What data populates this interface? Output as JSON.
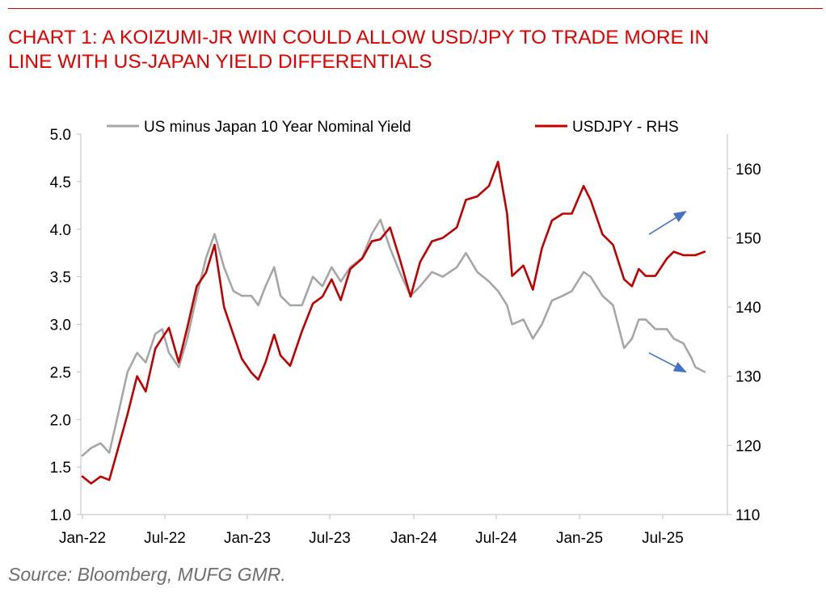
{
  "title": {
    "line1": "CHART 1: A KOIZUMI-JR WIN COULD ALLOW USD/JPY TO TRADE MORE IN",
    "line2": "LINE WITH US-JAPAN YIELD DIFFERENTIALS"
  },
  "source": "Source: Bloomberg, MUFG GMR.",
  "colors": {
    "title": "#e00000",
    "yield_series": "#a6a6a6",
    "usdjpy_series": "#c00000",
    "arrow": "#4472c4"
  },
  "chart_data": {
    "type": "line",
    "title": "CHART 1: A KOIZUMI-JR WIN COULD ALLOW USD/JPY TO TRADE MORE IN LINE WITH US-JAPAN YIELD DIFFERENTIALS",
    "legend_position": "top",
    "grid": false,
    "x_ticks": [
      "Jan-22",
      "Jul-22",
      "Jan-23",
      "Jul-23",
      "Jan-24",
      "Jul-24",
      "Jan-25",
      "Jul-25"
    ],
    "x_range": [
      "2022-01-01",
      "2025-09-30"
    ],
    "y_left": {
      "ylim": [
        1.0,
        5.0
      ],
      "ticks": [
        "1.0",
        "1.5",
        "2.0",
        "2.5",
        "3.0",
        "3.5",
        "4.0",
        "4.5",
        "5.0"
      ]
    },
    "y_right": {
      "ylim": [
        110,
        165
      ],
      "ticks": [
        "110",
        "120",
        "130",
        "140",
        "150",
        "160"
      ]
    },
    "series": [
      {
        "name": "US minus Japan 10 Year Nominal Yield",
        "axis": "left",
        "points": [
          [
            "2022-01-01",
            1.62
          ],
          [
            "2022-01-20",
            1.7
          ],
          [
            "2022-02-10",
            1.75
          ],
          [
            "2022-03-01",
            1.65
          ],
          [
            "2022-03-20",
            2.05
          ],
          [
            "2022-04-10",
            2.5
          ],
          [
            "2022-05-01",
            2.7
          ],
          [
            "2022-05-20",
            2.6
          ],
          [
            "2022-06-10",
            2.9
          ],
          [
            "2022-06-25",
            2.95
          ],
          [
            "2022-07-10",
            2.7
          ],
          [
            "2022-08-01",
            2.55
          ],
          [
            "2022-08-20",
            2.85
          ],
          [
            "2022-09-10",
            3.3
          ],
          [
            "2022-10-01",
            3.7
          ],
          [
            "2022-10-20",
            3.95
          ],
          [
            "2022-11-10",
            3.6
          ],
          [
            "2022-12-01",
            3.35
          ],
          [
            "2022-12-20",
            3.3
          ],
          [
            "2023-01-10",
            3.3
          ],
          [
            "2023-01-25",
            3.2
          ],
          [
            "2023-02-10",
            3.4
          ],
          [
            "2023-03-01",
            3.6
          ],
          [
            "2023-03-15",
            3.3
          ],
          [
            "2023-04-05",
            3.2
          ],
          [
            "2023-05-01",
            3.2
          ],
          [
            "2023-05-25",
            3.5
          ],
          [
            "2023-06-15",
            3.4
          ],
          [
            "2023-07-05",
            3.6
          ],
          [
            "2023-07-25",
            3.45
          ],
          [
            "2023-08-15",
            3.6
          ],
          [
            "2023-09-10",
            3.7
          ],
          [
            "2023-10-01",
            3.95
          ],
          [
            "2023-10-20",
            4.1
          ],
          [
            "2023-11-10",
            3.8
          ],
          [
            "2023-12-01",
            3.55
          ],
          [
            "2023-12-25",
            3.3
          ],
          [
            "2024-01-15",
            3.4
          ],
          [
            "2024-02-10",
            3.55
          ],
          [
            "2024-03-05",
            3.5
          ],
          [
            "2024-04-05",
            3.6
          ],
          [
            "2024-04-25",
            3.75
          ],
          [
            "2024-05-20",
            3.55
          ],
          [
            "2024-06-15",
            3.45
          ],
          [
            "2024-07-05",
            3.35
          ],
          [
            "2024-07-25",
            3.2
          ],
          [
            "2024-08-05",
            3.0
          ],
          [
            "2024-08-30",
            3.05
          ],
          [
            "2024-09-20",
            2.85
          ],
          [
            "2024-10-10",
            3.0
          ],
          [
            "2024-11-01",
            3.25
          ],
          [
            "2024-11-25",
            3.3
          ],
          [
            "2024-12-15",
            3.35
          ],
          [
            "2025-01-10",
            3.55
          ],
          [
            "2025-01-25",
            3.5
          ],
          [
            "2025-02-20",
            3.3
          ],
          [
            "2025-03-15",
            3.2
          ],
          [
            "2025-04-08",
            2.75
          ],
          [
            "2025-04-25",
            2.85
          ],
          [
            "2025-05-10",
            3.05
          ],
          [
            "2025-05-25",
            3.05
          ],
          [
            "2025-06-15",
            2.95
          ],
          [
            "2025-07-10",
            2.95
          ],
          [
            "2025-07-25",
            2.85
          ],
          [
            "2025-08-15",
            2.8
          ],
          [
            "2025-09-01",
            2.65
          ],
          [
            "2025-09-10",
            2.55
          ],
          [
            "2025-09-30",
            2.5
          ]
        ]
      },
      {
        "name": "USDJPY - RHS",
        "axis": "right",
        "points": [
          [
            "2022-01-01",
            115.5
          ],
          [
            "2022-01-20",
            114.5
          ],
          [
            "2022-02-10",
            115.5
          ],
          [
            "2022-03-01",
            115.0
          ],
          [
            "2022-03-20",
            119.5
          ],
          [
            "2022-04-10",
            124.5
          ],
          [
            "2022-05-01",
            130.0
          ],
          [
            "2022-05-20",
            127.8
          ],
          [
            "2022-06-10",
            134.0
          ],
          [
            "2022-06-25",
            135.5
          ],
          [
            "2022-07-10",
            137.0
          ],
          [
            "2022-08-01",
            132.0
          ],
          [
            "2022-08-20",
            137.0
          ],
          [
            "2022-09-10",
            143.0
          ],
          [
            "2022-10-01",
            145.0
          ],
          [
            "2022-10-20",
            149.0
          ],
          [
            "2022-11-10",
            140.0
          ],
          [
            "2022-12-01",
            136.0
          ],
          [
            "2022-12-20",
            132.5
          ],
          [
            "2023-01-10",
            130.5
          ],
          [
            "2023-01-25",
            129.5
          ],
          [
            "2023-02-10",
            132.0
          ],
          [
            "2023-03-01",
            136.0
          ],
          [
            "2023-03-15",
            133.0
          ],
          [
            "2023-04-05",
            131.5
          ],
          [
            "2023-05-01",
            136.5
          ],
          [
            "2023-05-25",
            140.5
          ],
          [
            "2023-06-15",
            141.5
          ],
          [
            "2023-07-05",
            144.0
          ],
          [
            "2023-07-25",
            141.0
          ],
          [
            "2023-08-15",
            145.5
          ],
          [
            "2023-09-10",
            147.0
          ],
          [
            "2023-10-01",
            149.5
          ],
          [
            "2023-10-20",
            149.8
          ],
          [
            "2023-11-10",
            151.5
          ],
          [
            "2023-12-01",
            147.0
          ],
          [
            "2023-12-25",
            141.5
          ],
          [
            "2024-01-15",
            146.5
          ],
          [
            "2024-02-10",
            149.5
          ],
          [
            "2024-03-05",
            150.0
          ],
          [
            "2024-04-05",
            151.5
          ],
          [
            "2024-04-25",
            155.5
          ],
          [
            "2024-05-20",
            156.0
          ],
          [
            "2024-06-15",
            157.5
          ],
          [
            "2024-07-05",
            161.0
          ],
          [
            "2024-07-25",
            153.5
          ],
          [
            "2024-08-05",
            144.5
          ],
          [
            "2024-08-30",
            146.0
          ],
          [
            "2024-09-20",
            142.5
          ],
          [
            "2024-10-10",
            148.5
          ],
          [
            "2024-11-01",
            152.5
          ],
          [
            "2024-11-25",
            153.5
          ],
          [
            "2024-12-15",
            153.5
          ],
          [
            "2025-01-10",
            157.5
          ],
          [
            "2025-01-25",
            155.5
          ],
          [
            "2025-02-20",
            150.5
          ],
          [
            "2025-03-15",
            149.0
          ],
          [
            "2025-04-08",
            144.0
          ],
          [
            "2025-04-25",
            143.0
          ],
          [
            "2025-05-10",
            145.5
          ],
          [
            "2025-05-25",
            144.5
          ],
          [
            "2025-06-15",
            144.5
          ],
          [
            "2025-07-10",
            147.0
          ],
          [
            "2025-07-25",
            148.0
          ],
          [
            "2025-08-15",
            147.5
          ],
          [
            "2025-09-01",
            147.5
          ],
          [
            "2025-09-10",
            147.5
          ],
          [
            "2025-09-30",
            148.0
          ]
        ]
      }
    ],
    "annotations": [
      {
        "type": "arrow",
        "direction": "up",
        "from": [
          "2025-06-01",
          150.5
        ],
        "to": [
          "2025-08-20",
          153.8
        ],
        "axis": "right"
      },
      {
        "type": "arrow",
        "direction": "down",
        "from": [
          "2025-06-01",
          2.7
        ],
        "to": [
          "2025-08-20",
          2.5
        ],
        "axis": "left"
      }
    ]
  }
}
